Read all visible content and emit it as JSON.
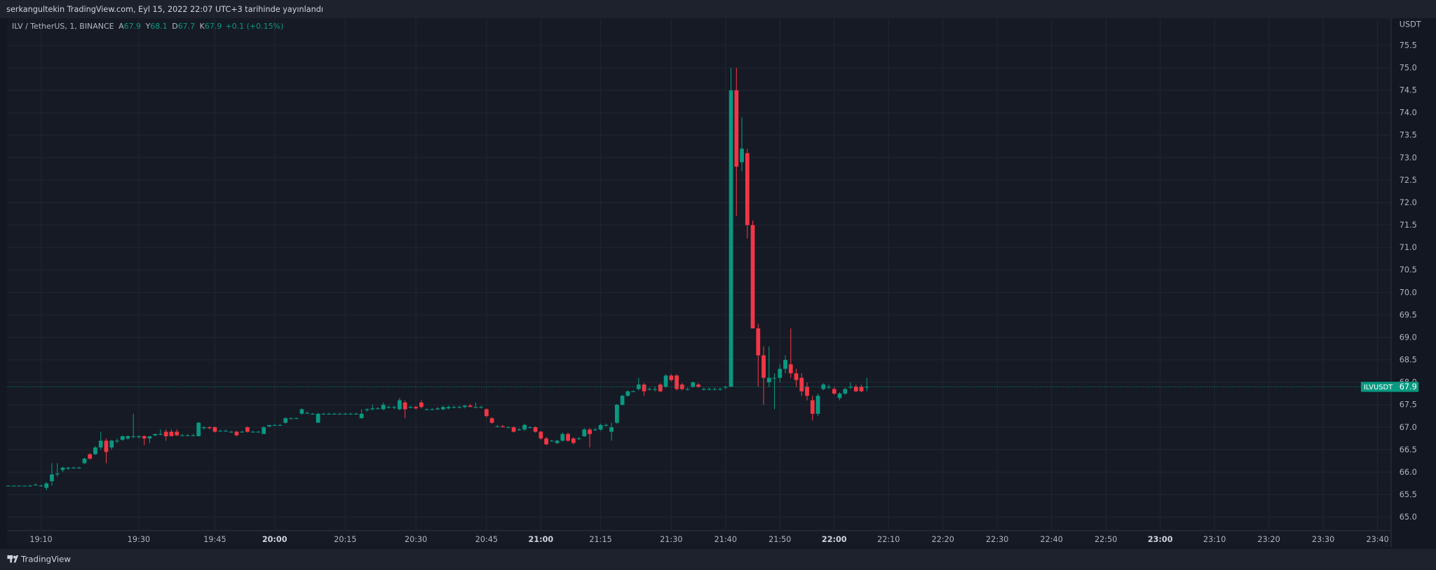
{
  "header": {
    "text": "serkangultekin TradingView.com, Eyl 15, 2022 22:07 UTC+3 tarihinde yayınlandı"
  },
  "footer": {
    "brand": "TradingView"
  },
  "chart_data": {
    "type": "candlestick",
    "legend": {
      "symbol": "ILV / TetherUS, 1, BINANCE",
      "items": [
        {
          "key": "A",
          "value": 67.9
        },
        {
          "key": "Y",
          "value": 68.1
        },
        {
          "key": "D",
          "value": 67.7
        },
        {
          "key": "K",
          "value": 67.9
        }
      ],
      "change": "+0.1 (+0.15%)"
    },
    "currency": "USDT",
    "last_price": {
      "label": "ILVUSDT",
      "value": 67.9
    },
    "colors": {
      "up": "#089981",
      "down": "#f23645"
    },
    "grid": true,
    "xlim": [
      -0.2,
      254.5
    ],
    "xticks": [
      {
        "value": 6,
        "label": "19:10"
      },
      {
        "value": 24,
        "label": "19:30"
      },
      {
        "value": 38,
        "label": "19:45"
      },
      {
        "value": 49,
        "label": "20:00"
      },
      {
        "value": 62,
        "label": "20:15"
      },
      {
        "value": 75,
        "label": "20:30"
      },
      {
        "value": 88,
        "label": "20:45"
      },
      {
        "value": 98,
        "label": "21:00"
      },
      {
        "value": 109,
        "label": "21:15"
      },
      {
        "value": 122,
        "label": "21:30"
      },
      {
        "value": 132,
        "label": "21:40"
      },
      {
        "value": 142,
        "label": "21:50"
      },
      {
        "value": 152,
        "label": "22:00"
      },
      {
        "value": 162,
        "label": "22:10"
      },
      {
        "value": 172,
        "label": "22:20"
      },
      {
        "value": 182,
        "label": "22:30"
      },
      {
        "value": 192,
        "label": "22:40"
      },
      {
        "value": 202,
        "label": "22:50"
      },
      {
        "value": 212,
        "label": "23:00"
      },
      {
        "value": 222,
        "label": "23:10"
      },
      {
        "value": 232,
        "label": "23:20"
      },
      {
        "value": 242,
        "label": "23:30"
      },
      {
        "value": 252,
        "label": "23:40"
      }
    ],
    "ylim": [
      64.7,
      76.1
    ],
    "yticks": [
      {
        "value": 65,
        "label": "65.0"
      },
      65.5,
      {
        "value": 66,
        "label": "66.0"
      },
      66.5,
      {
        "value": 67,
        "label": "67.0"
      },
      67.5,
      {
        "value": 68,
        "label": "68.0"
      },
      68.5,
      {
        "value": 69,
        "label": "69.0"
      },
      69.5,
      {
        "value": 70,
        "label": "70.0"
      },
      70.5,
      {
        "value": 71,
        "label": "71.0"
      },
      71.5,
      {
        "value": 72,
        "label": "72.0"
      },
      72.5,
      {
        "value": 73,
        "label": "73.0"
      },
      73.5,
      {
        "value": 74,
        "label": "74.0"
      },
      74.5,
      {
        "value": 75,
        "label": "75.0"
      },
      75.5
    ],
    "ohlc": [
      [
        65.7,
        65.7,
        65.7,
        65.7
      ],
      [
        65.7,
        65.7,
        65.7,
        65.7
      ],
      [
        65.7,
        65.7,
        65.7,
        65.7
      ],
      [
        65.7,
        65.7,
        65.7,
        65.7
      ],
      [
        65.7,
        65.72,
        65.68,
        65.7
      ],
      [
        65.72,
        65.75,
        65.7,
        65.72
      ],
      [
        65.7,
        65.72,
        65.68,
        65.7
      ],
      [
        65.65,
        65.78,
        65.6,
        65.75
      ],
      [
        65.8,
        66.2,
        65.7,
        65.95
      ],
      [
        65.95,
        66.2,
        65.9,
        65.97
      ],
      [
        66.05,
        66.12,
        66.0,
        66.1
      ],
      [
        66.08,
        66.12,
        66.05,
        66.1
      ],
      [
        66.1,
        66.12,
        66.08,
        66.1
      ],
      [
        66.1,
        66.12,
        66.08,
        66.1
      ],
      [
        66.2,
        66.32,
        66.18,
        66.3
      ],
      [
        66.4,
        66.42,
        66.28,
        66.3
      ],
      [
        66.4,
        66.58,
        66.38,
        66.55
      ],
      [
        66.55,
        66.9,
        66.5,
        66.7
      ],
      [
        66.7,
        66.75,
        66.2,
        66.45
      ],
      [
        66.55,
        66.72,
        66.5,
        66.7
      ],
      [
        66.7,
        66.75,
        66.65,
        66.7
      ],
      [
        66.72,
        66.82,
        66.7,
        66.8
      ],
      [
        66.75,
        66.82,
        66.72,
        66.8
      ],
      [
        66.8,
        67.3,
        66.75,
        66.8
      ],
      [
        66.78,
        66.82,
        66.75,
        66.8
      ],
      [
        66.8,
        66.82,
        66.6,
        66.75
      ],
      [
        66.75,
        66.8,
        66.65,
        66.8
      ],
      [
        66.82,
        66.85,
        66.8,
        66.85
      ],
      [
        66.85,
        66.95,
        66.82,
        66.85
      ],
      [
        66.9,
        66.95,
        66.7,
        66.8
      ],
      [
        66.9,
        66.95,
        66.85,
        66.8
      ],
      [
        66.9,
        66.95,
        66.8,
        66.82
      ],
      [
        66.82,
        66.85,
        66.8,
        66.82
      ],
      [
        66.82,
        66.85,
        66.8,
        66.82
      ],
      [
        66.82,
        66.85,
        66.8,
        66.82
      ],
      [
        66.8,
        67.12,
        66.8,
        67.1
      ],
      [
        66.98,
        67.02,
        66.95,
        67.0
      ],
      [
        67.0,
        67.02,
        66.95,
        66.98
      ],
      [
        67.0,
        67.02,
        66.88,
        66.9
      ],
      [
        66.92,
        66.95,
        66.9,
        66.92
      ],
      [
        66.92,
        66.95,
        66.9,
        66.92
      ],
      [
        66.9,
        66.92,
        66.88,
        66.9
      ],
      [
        66.9,
        66.92,
        66.8,
        66.82
      ],
      [
        66.9,
        66.92,
        66.88,
        66.9
      ],
      [
        67.0,
        67.02,
        66.88,
        66.9
      ],
      [
        66.9,
        66.92,
        66.88,
        66.9
      ],
      [
        66.9,
        66.92,
        66.88,
        66.9
      ],
      [
        66.85,
        67.02,
        66.85,
        67.0
      ],
      [
        67.02,
        67.05,
        67.0,
        67.05
      ],
      [
        67.05,
        67.07,
        67.03,
        67.05
      ],
      [
        67.05,
        67.07,
        67.03,
        67.05
      ],
      [
        67.1,
        67.22,
        67.08,
        67.2
      ],
      [
        67.2,
        67.22,
        67.18,
        67.2
      ],
      [
        67.2,
        67.22,
        67.18,
        67.2
      ],
      [
        67.3,
        67.42,
        67.28,
        67.4
      ],
      [
        67.32,
        67.35,
        67.3,
        67.32
      ],
      [
        67.3,
        67.32,
        67.28,
        67.3
      ],
      [
        67.1,
        67.32,
        67.1,
        67.3
      ],
      [
        67.3,
        67.32,
        67.28,
        67.3
      ],
      [
        67.3,
        67.32,
        67.28,
        67.3
      ],
      [
        67.3,
        67.32,
        67.28,
        67.3
      ],
      [
        67.3,
        67.32,
        67.28,
        67.3
      ],
      [
        67.3,
        67.32,
        67.28,
        67.3
      ],
      [
        67.3,
        67.32,
        67.28,
        67.3
      ],
      [
        67.3,
        67.32,
        67.28,
        67.3
      ],
      [
        67.2,
        67.4,
        67.2,
        67.3
      ],
      [
        67.38,
        67.42,
        67.35,
        67.4
      ],
      [
        67.4,
        67.5,
        67.38,
        67.42
      ],
      [
        67.42,
        67.45,
        67.4,
        67.42
      ],
      [
        67.4,
        67.55,
        67.38,
        67.5
      ],
      [
        67.45,
        67.48,
        67.42,
        67.45
      ],
      [
        67.45,
        67.48,
        67.4,
        67.45
      ],
      [
        67.4,
        67.65,
        67.38,
        67.6
      ],
      [
        67.55,
        67.6,
        67.2,
        67.4
      ],
      [
        67.45,
        67.48,
        67.42,
        67.45
      ],
      [
        67.45,
        67.48,
        67.4,
        67.42
      ],
      [
        67.55,
        67.6,
        67.42,
        67.45
      ],
      [
        67.4,
        67.42,
        67.38,
        67.4
      ],
      [
        67.4,
        67.42,
        67.38,
        67.4
      ],
      [
        67.4,
        67.45,
        67.38,
        67.42
      ],
      [
        67.4,
        67.48,
        67.38,
        67.45
      ],
      [
        67.42,
        67.48,
        67.4,
        67.45
      ],
      [
        67.45,
        67.48,
        67.42,
        67.45
      ],
      [
        67.45,
        67.48,
        67.42,
        67.45
      ],
      [
        67.45,
        67.5,
        67.42,
        67.48
      ],
      [
        67.48,
        67.52,
        67.45,
        67.45
      ],
      [
        67.45,
        67.55,
        67.42,
        67.45
      ],
      [
        67.45,
        67.48,
        67.42,
        67.45
      ],
      [
        67.4,
        67.42,
        67.22,
        67.25
      ],
      [
        67.2,
        67.22,
        67.08,
        67.1
      ],
      [
        67.02,
        67.05,
        67.0,
        67.02
      ],
      [
        67.02,
        67.05,
        67.0,
        67.0
      ],
      [
        67.0,
        67.02,
        66.98,
        67.0
      ],
      [
        67.0,
        67.02,
        66.88,
        66.9
      ],
      [
        66.95,
        66.98,
        66.92,
        66.95
      ],
      [
        66.95,
        67.08,
        66.92,
        67.05
      ],
      [
        67.0,
        67.02,
        66.98,
        67.0
      ],
      [
        67.0,
        67.02,
        66.88,
        66.9
      ],
      [
        66.9,
        66.92,
        66.72,
        66.75
      ],
      [
        66.75,
        66.78,
        66.6,
        66.62
      ],
      [
        66.7,
        66.72,
        66.68,
        66.7
      ],
      [
        66.65,
        66.72,
        66.62,
        66.7
      ],
      [
        66.7,
        66.88,
        66.68,
        66.85
      ],
      [
        66.85,
        66.88,
        66.68,
        66.7
      ],
      [
        66.75,
        66.78,
        66.62,
        66.65
      ],
      [
        66.75,
        66.78,
        66.72,
        66.75
      ],
      [
        66.8,
        66.98,
        66.78,
        66.95
      ],
      [
        66.95,
        66.98,
        66.55,
        66.85
      ],
      [
        66.95,
        66.98,
        66.92,
        66.95
      ],
      [
        66.95,
        67.08,
        66.92,
        67.05
      ],
      [
        67.05,
        67.08,
        67.02,
        67.05
      ],
      [
        66.9,
        67.1,
        66.7,
        67.0
      ],
      [
        67.1,
        67.52,
        67.08,
        67.5
      ],
      [
        67.5,
        67.72,
        67.48,
        67.7
      ],
      [
        67.7,
        67.82,
        67.68,
        67.8
      ],
      [
        67.8,
        67.82,
        67.78,
        67.8
      ],
      [
        67.85,
        68.1,
        67.82,
        67.95
      ],
      [
        67.95,
        67.98,
        67.7,
        67.8
      ],
      [
        67.85,
        67.88,
        67.82,
        67.85
      ],
      [
        67.85,
        67.9,
        67.8,
        67.85
      ],
      [
        67.95,
        67.98,
        67.78,
        67.8
      ],
      [
        67.9,
        68.18,
        67.88,
        68.15
      ],
      [
        68.15,
        68.18,
        68.02,
        68.05
      ],
      [
        68.15,
        68.18,
        67.82,
        67.85
      ],
      [
        67.95,
        67.98,
        67.82,
        67.85
      ],
      [
        67.85,
        67.88,
        67.82,
        67.85
      ],
      [
        67.9,
        68.02,
        67.88,
        68.0
      ],
      [
        67.95,
        67.98,
        67.88,
        67.9
      ],
      [
        67.85,
        67.88,
        67.82,
        67.85
      ],
      [
        67.85,
        67.88,
        67.82,
        67.85
      ],
      [
        67.85,
        67.88,
        67.82,
        67.85
      ],
      [
        67.85,
        67.88,
        67.82,
        67.85
      ],
      [
        67.9,
        67.92,
        67.85,
        67.9
      ],
      [
        67.9,
        75.0,
        67.9,
        74.5
      ],
      [
        74.5,
        75.0,
        71.7,
        72.8
      ],
      [
        72.9,
        73.9,
        72.7,
        73.2
      ],
      [
        73.1,
        73.2,
        71.2,
        71.5
      ],
      [
        71.5,
        71.6,
        69.2,
        69.2
      ],
      [
        69.2,
        69.3,
        67.9,
        68.6
      ],
      [
        68.6,
        68.8,
        67.5,
        68.1
      ],
      [
        68.0,
        68.8,
        67.9,
        68.1
      ],
      [
        68.1,
        68.2,
        67.4,
        68.1
      ],
      [
        68.1,
        68.4,
        68.0,
        68.3
      ],
      [
        68.3,
        68.6,
        68.2,
        68.5
      ],
      [
        68.4,
        69.2,
        68.1,
        68.2
      ],
      [
        68.2,
        68.3,
        67.9,
        68.05
      ],
      [
        68.1,
        68.2,
        67.7,
        67.8
      ],
      [
        67.9,
        68.0,
        67.6,
        67.7
      ],
      [
        67.6,
        67.7,
        67.15,
        67.3
      ],
      [
        67.3,
        67.75,
        67.25,
        67.7
      ],
      [
        67.85,
        67.98,
        67.82,
        67.95
      ],
      [
        67.9,
        67.95,
        67.85,
        67.9
      ],
      [
        67.85,
        67.9,
        67.72,
        67.75
      ],
      [
        67.65,
        67.78,
        67.6,
        67.75
      ],
      [
        67.75,
        67.88,
        67.72,
        67.85
      ],
      [
        67.9,
        68.0,
        67.85,
        67.9
      ],
      [
        67.9,
        67.95,
        67.78,
        67.8
      ],
      [
        67.9,
        67.95,
        67.78,
        67.8
      ],
      [
        67.9,
        68.1,
        67.8,
        67.9
      ]
    ]
  }
}
